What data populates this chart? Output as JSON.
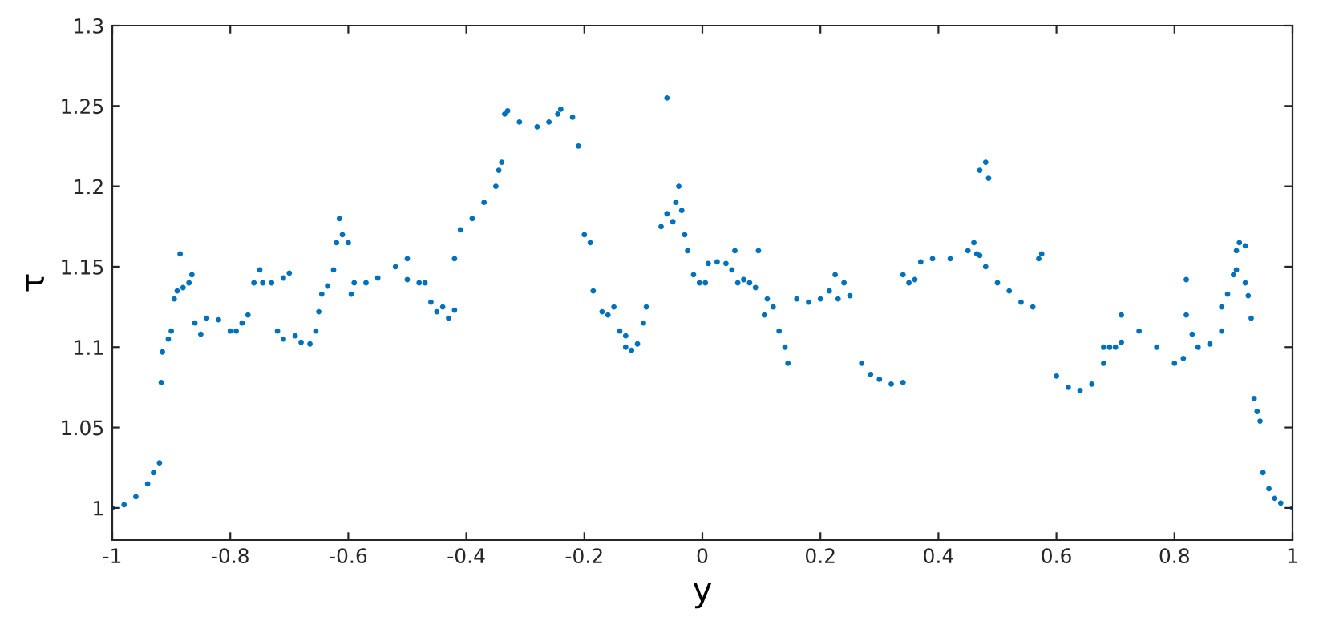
{
  "chart_data": {
    "type": "scatter",
    "xlabel": "y",
    "ylabel": "τ",
    "marker": "circle",
    "grid": false,
    "legend": false,
    "xlim": [
      -1,
      1
    ],
    "ylim": [
      0.98,
      1.3
    ],
    "xticks": [
      -1,
      -0.8,
      -0.6,
      -0.4,
      -0.2,
      0,
      0.2,
      0.4,
      0.6,
      0.8,
      1
    ],
    "yticks": [
      1,
      1.05,
      1.1,
      1.15,
      1.2,
      1.25,
      1.3
    ],
    "series": [
      {
        "color": "#0072bd",
        "x": [
          -1,
          -0.98,
          -0.96,
          -0.94,
          -0.93,
          -0.92,
          -0.917,
          -0.915,
          -0.905,
          -0.9,
          -0.895,
          -0.89,
          -0.885,
          -0.88,
          -0.87,
          -0.865,
          -0.86,
          -0.85,
          -0.84,
          -0.82,
          -0.8,
          -0.79,
          -0.78,
          -0.77,
          -0.76,
          -0.75,
          -0.745,
          -0.73,
          -0.71,
          -0.7,
          -0.72,
          -0.71,
          -0.69,
          -0.68,
          -0.665,
          -0.655,
          -0.65,
          -0.645,
          -0.635,
          -0.625,
          -0.62,
          -0.615,
          -0.61,
          -0.6,
          -0.595,
          -0.59,
          -0.57,
          -0.55,
          -0.52,
          -0.5,
          -0.5,
          -0.48,
          -0.47,
          -0.46,
          -0.45,
          -0.44,
          -0.43,
          -0.42,
          -0.42,
          -0.41,
          -0.39,
          -0.37,
          -0.35,
          -0.345,
          -0.34,
          -0.335,
          -0.33,
          -0.31,
          -0.28,
          -0.26,
          -0.245,
          -0.24,
          -0.22,
          -0.21,
          -0.2,
          -0.19,
          -0.185,
          -0.17,
          -0.16,
          -0.15,
          -0.14,
          -0.13,
          -0.13,
          -0.12,
          -0.11,
          -0.1,
          -0.095,
          -0.06,
          -0.07,
          -0.06,
          -0.05,
          -0.045,
          -0.04,
          -0.035,
          -0.03,
          -0.025,
          -0.015,
          -0.005,
          0.005,
          0.01,
          0.025,
          0.04,
          0.05,
          0.055,
          0.06,
          0.07,
          0.08,
          0.09,
          0.095,
          0.105,
          0.11,
          0.12,
          0.13,
          0.14,
          0.145,
          0.16,
          0.18,
          0.2,
          0.215,
          0.225,
          0.23,
          0.24,
          0.25,
          0.27,
          0.285,
          0.3,
          0.32,
          0.34,
          0.34,
          0.35,
          0.36,
          0.37,
          0.39,
          0.42,
          0.45,
          0.46,
          0.465,
          0.47,
          0.47,
          0.48,
          0.485,
          0.48,
          0.5,
          0.52,
          0.54,
          0.56,
          0.57,
          0.575,
          0.6,
          0.62,
          0.64,
          0.66,
          0.68,
          0.69,
          0.68,
          0.7,
          0.71,
          0.71,
          0.74,
          0.77,
          0.8,
          0.815,
          0.82,
          0.82,
          0.83,
          0.84,
          0.86,
          0.88,
          0.88,
          0.89,
          0.9,
          0.905,
          0.905,
          0.91,
          0.92,
          0.92,
          0.925,
          0.93,
          0.935,
          0.94,
          0.945,
          0.95,
          0.96,
          0.97,
          0.98,
          1.0
        ],
        "values": [
          1.0,
          1.002,
          1.007,
          1.015,
          1.022,
          1.028,
          1.078,
          1.097,
          1.105,
          1.11,
          1.13,
          1.135,
          1.158,
          1.137,
          1.14,
          1.145,
          1.115,
          1.108,
          1.118,
          1.117,
          1.11,
          1.11,
          1.115,
          1.12,
          1.14,
          1.148,
          1.14,
          1.14,
          1.143,
          1.146,
          1.11,
          1.105,
          1.107,
          1.103,
          1.102,
          1.11,
          1.122,
          1.133,
          1.138,
          1.148,
          1.165,
          1.18,
          1.17,
          1.165,
          1.133,
          1.14,
          1.14,
          1.143,
          1.15,
          1.155,
          1.142,
          1.14,
          1.14,
          1.128,
          1.122,
          1.125,
          1.118,
          1.123,
          1.155,
          1.173,
          1.18,
          1.19,
          1.2,
          1.21,
          1.215,
          1.245,
          1.247,
          1.24,
          1.237,
          1.24,
          1.245,
          1.248,
          1.243,
          1.225,
          1.17,
          1.165,
          1.135,
          1.122,
          1.12,
          1.125,
          1.11,
          1.107,
          1.1,
          1.098,
          1.102,
          1.115,
          1.125,
          1.255,
          1.175,
          1.183,
          1.178,
          1.19,
          1.2,
          1.185,
          1.17,
          1.16,
          1.145,
          1.14,
          1.14,
          1.152,
          1.153,
          1.152,
          1.148,
          1.16,
          1.14,
          1.142,
          1.14,
          1.137,
          1.16,
          1.12,
          1.13,
          1.125,
          1.11,
          1.1,
          1.09,
          1.13,
          1.128,
          1.13,
          1.135,
          1.145,
          1.13,
          1.14,
          1.132,
          1.09,
          1.083,
          1.08,
          1.077,
          1.078,
          1.145,
          1.14,
          1.142,
          1.153,
          1.155,
          1.155,
          1.16,
          1.165,
          1.158,
          1.157,
          1.21,
          1.215,
          1.205,
          1.15,
          1.14,
          1.135,
          1.128,
          1.125,
          1.155,
          1.158,
          1.082,
          1.075,
          1.073,
          1.077,
          1.09,
          1.1,
          1.1,
          1.1,
          1.103,
          1.12,
          1.11,
          1.1,
          1.09,
          1.093,
          1.142,
          1.12,
          1.108,
          1.1,
          1.102,
          1.11,
          1.125,
          1.133,
          1.145,
          1.148,
          1.16,
          1.165,
          1.163,
          1.14,
          1.132,
          1.118,
          1.068,
          1.06,
          1.054,
          1.022,
          1.012,
          1.006,
          1.003,
          1.0
        ]
      }
    ]
  }
}
